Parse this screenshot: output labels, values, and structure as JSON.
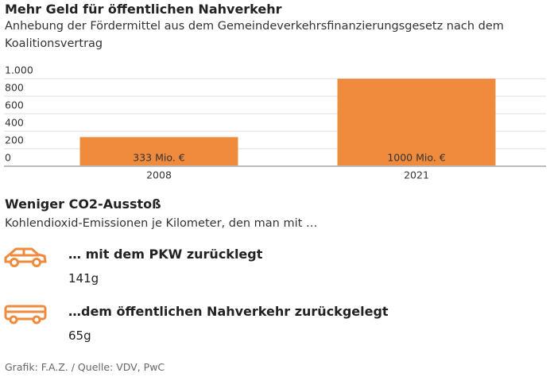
{
  "chart_data": {
    "type": "bar",
    "title": "Mehr Geld für öffentlichen Nahverkehr",
    "subtitle": "Anhebung der Fördermittel aus dem Gemeindeverkehrsfinanzierungsgesetz nach dem Koalitionsvertrag",
    "categories": [
      "2008",
      "2021"
    ],
    "values": [
      333,
      1000
    ],
    "value_labels": [
      "333 Mio. €",
      "1000 Mio. €"
    ],
    "color": "#f08a3c",
    "ylim": [
      0,
      1000
    ],
    "yticks": [
      0,
      200,
      400,
      600,
      800,
      {
        "value": 1000,
        "label": "1.000"
      }
    ],
    "grid": true
  },
  "emissions": {
    "title": "Weniger CO2-Ausstoß",
    "subtitle": "Kohlendioxid-Emissionen je Kilometer, den man mit …",
    "items": [
      {
        "label": "… mit dem PKW zurücklegt",
        "value": "141g"
      },
      {
        "label": "…dem öffentlichen Nahverkehr zurückgelegt",
        "value": "65g"
      }
    ]
  },
  "footer": "Grafik: F.A.Z. / Quelle: VDV, PwC"
}
